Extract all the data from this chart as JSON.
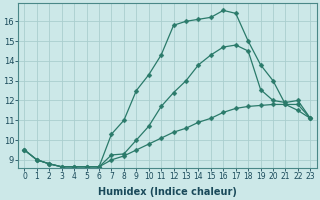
{
  "xlabel": "Humidex (Indice chaleur)",
  "bg_color": "#cce8e8",
  "line_color": "#2a7a6a",
  "grid_color": "#aacece",
  "xlim": [
    -0.5,
    23.5
  ],
  "ylim": [
    8.6,
    16.9
  ],
  "xticks": [
    0,
    1,
    2,
    3,
    4,
    5,
    6,
    7,
    8,
    9,
    10,
    11,
    12,
    13,
    14,
    15,
    16,
    17,
    18,
    19,
    20,
    21,
    22,
    23
  ],
  "yticks": [
    9,
    10,
    11,
    12,
    13,
    14,
    15,
    16
  ],
  "line1_y": [
    9.5,
    9.0,
    8.8,
    8.65,
    8.65,
    8.65,
    8.65,
    10.3,
    11.0,
    12.5,
    13.3,
    14.3,
    15.8,
    16.0,
    16.1,
    16.2,
    16.55,
    16.4,
    15.0,
    13.8,
    13.0,
    11.8,
    11.5,
    11.1
  ],
  "line2_y": [
    9.5,
    9.0,
    8.8,
    8.65,
    8.65,
    8.65,
    8.65,
    9.25,
    9.3,
    10.0,
    10.7,
    11.7,
    12.4,
    13.0,
    13.8,
    14.3,
    14.7,
    14.8,
    14.5,
    12.55,
    12.0,
    11.9,
    12.0,
    11.1
  ],
  "line3_y": [
    9.5,
    9.0,
    8.8,
    8.65,
    8.65,
    8.65,
    8.65,
    9.0,
    9.2,
    9.5,
    9.8,
    10.1,
    10.4,
    10.6,
    10.9,
    11.1,
    11.4,
    11.6,
    11.7,
    11.75,
    11.8,
    11.8,
    11.8,
    11.1
  ],
  "tick_fontsize": 5.5,
  "ytick_fontsize": 6.0,
  "xlabel_fontsize": 7.0
}
